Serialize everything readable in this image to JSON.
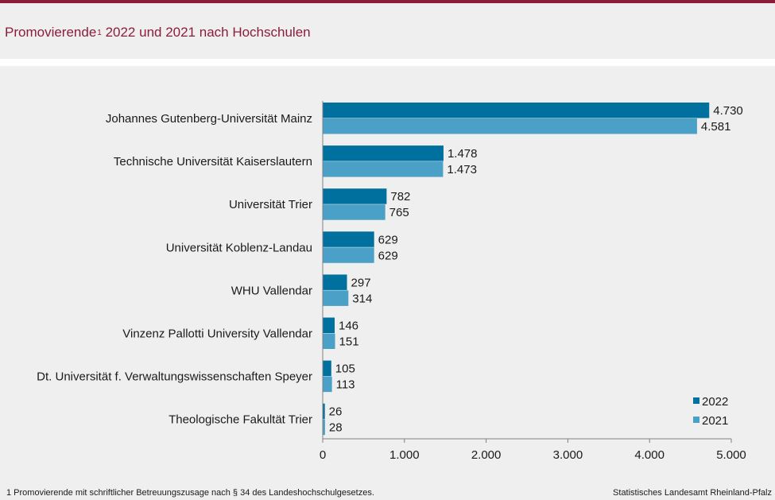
{
  "title": {
    "main": "Promovierende",
    "footnote_mark": "1",
    "rest": " 2022 und 2021 nach Hochschulen"
  },
  "footer": {
    "footnote": "1 Promovierende  mit schriftlicher Betreuungszusage  nach § 34 des Landeshochschulgesetzes.",
    "source": "Statistisches Landesamt Rheinland-Pfalz"
  },
  "colors": {
    "title": "#8c1d3a",
    "series_2022": "#00709f",
    "series_2021": "#4aa0c6",
    "axis": "#808080"
  },
  "chart_data": {
    "type": "bar",
    "orientation": "horizontal",
    "categories": [
      "Johannes Gutenberg-Universität Mainz",
      "Technische Universität Kaiserslautern",
      "Universität Trier",
      "Universität Koblenz-Landau",
      "WHU Vallendar",
      "Vinzenz Pallotti University Vallendar",
      "Dt. Universität f. Verwaltungswissenschaften Speyer",
      "Theologische Fakultät Trier"
    ],
    "series": [
      {
        "name": "2022",
        "values": [
          4730,
          1478,
          782,
          629,
          297,
          146,
          105,
          26
        ],
        "labels": [
          "4.730",
          "1.478",
          "782",
          "629",
          "297",
          "146",
          "105",
          "26"
        ]
      },
      {
        "name": "2021",
        "values": [
          4581,
          1473,
          765,
          629,
          314,
          151,
          113,
          28
        ],
        "labels": [
          "4.581",
          "1.473",
          "765",
          "629",
          "314",
          "151",
          "113",
          "28"
        ]
      }
    ],
    "xlim": [
      0,
      5000
    ],
    "xticks": [
      0,
      1000,
      2000,
      3000,
      4000,
      5000
    ],
    "xtick_labels": [
      "0",
      "1.000",
      "2.000",
      "3.000",
      "4.000",
      "5.000"
    ],
    "grid": false,
    "legend_position": "bottom-right"
  }
}
